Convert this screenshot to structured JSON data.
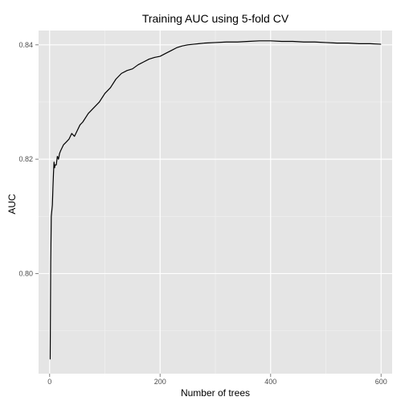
{
  "chart_data": {
    "type": "line",
    "title": "Training AUC using 5-fold CV",
    "xlabel": "Number of trees",
    "ylabel": "AUC",
    "xlim": [
      -20,
      620
    ],
    "ylim": [
      0.7825,
      0.8425
    ],
    "xticks": [
      0,
      200,
      400,
      600
    ],
    "yticks": [
      0.8,
      0.82,
      0.84
    ],
    "xtick_labels": [
      "0",
      "200",
      "400",
      "600"
    ],
    "ytick_labels": [
      "0.80",
      "0.82",
      "0.84"
    ],
    "grid": true,
    "panel_background": "#e5e5e5",
    "grid_color": "#ffffff",
    "line_color": "#000000",
    "series": [
      {
        "x": [
          1,
          2,
          3,
          4,
          5,
          6,
          7,
          8,
          9,
          10,
          12,
          14,
          16,
          18,
          20,
          25,
          30,
          35,
          40,
          45,
          50,
          55,
          60,
          70,
          80,
          90,
          100,
          110,
          120,
          130,
          140,
          150,
          160,
          170,
          180,
          190,
          200,
          210,
          220,
          230,
          240,
          250,
          260,
          270,
          280,
          300,
          320,
          340,
          360,
          380,
          400,
          420,
          440,
          460,
          480,
          500,
          520,
          540,
          560,
          580,
          600
        ],
        "y": [
          0.785,
          0.802,
          0.81,
          0.811,
          0.812,
          0.815,
          0.8175,
          0.8195,
          0.8185,
          0.819,
          0.819,
          0.8205,
          0.82,
          0.821,
          0.8215,
          0.8225,
          0.823,
          0.8235,
          0.8245,
          0.824,
          0.825,
          0.826,
          0.8265,
          0.828,
          0.829,
          0.83,
          0.8315,
          0.8325,
          0.834,
          0.835,
          0.8355,
          0.8358,
          0.8365,
          0.837,
          0.8375,
          0.8378,
          0.838,
          0.8385,
          0.839,
          0.8395,
          0.8398,
          0.84,
          0.8401,
          0.8402,
          0.8403,
          0.8404,
          0.8405,
          0.8405,
          0.8406,
          0.8407,
          0.8407,
          0.8406,
          0.8406,
          0.8405,
          0.8405,
          0.8404,
          0.8403,
          0.8403,
          0.8402,
          0.8402,
          0.8401
        ]
      }
    ]
  }
}
